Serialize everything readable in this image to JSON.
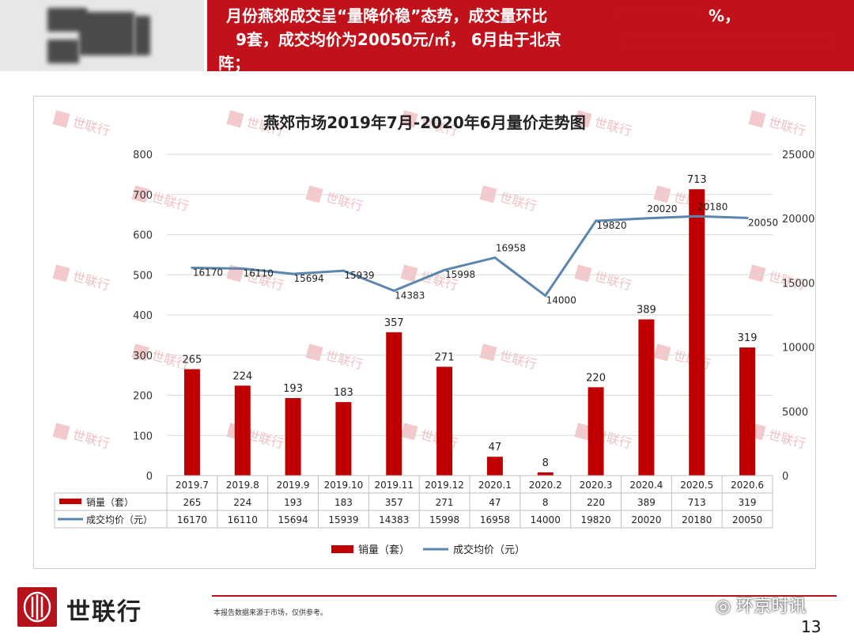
{
  "header": {
    "line1": "月份燕郊成交呈“量降价稳”态势，成交量环比",
    "line1_tail": "%，",
    "line2": "9套，成交均价为20050元/㎡， 6月由于北京",
    "line3": "阵；"
  },
  "chart_data": {
    "type": "bar+line",
    "title": "燕郊市场2019年7月-2020年6月量价走势图",
    "categories": [
      "2019.7",
      "2019.8",
      "2019.9",
      "2019.10",
      "2019.11",
      "2019.12",
      "2020.1",
      "2020.2",
      "2020.3",
      "2020.4",
      "2020.5",
      "2020.6"
    ],
    "series": [
      {
        "name": "销量（套）",
        "type": "bar",
        "axis": "left",
        "values": [
          265,
          224,
          193,
          183,
          357,
          271,
          47,
          8,
          220,
          389,
          713,
          319
        ],
        "color": "#c00000"
      },
      {
        "name": "成交均价（元）",
        "type": "line",
        "axis": "right",
        "values": [
          16170,
          16110,
          15694,
          15939,
          14383,
          15998,
          16958,
          14000,
          19820,
          20020,
          20180,
          20050
        ],
        "color": "#5b86ad"
      }
    ],
    "y_left": {
      "range": [
        0,
        800
      ],
      "ticks": [
        "0",
        "100",
        "200",
        "300",
        "400",
        "500",
        "600",
        "700",
        "800"
      ]
    },
    "y_right": {
      "range": [
        0,
        25000
      ],
      "ticks": [
        "0",
        "5000",
        "10000",
        "15000",
        "20000",
        "25000"
      ]
    },
    "grid": true,
    "legend_position": "bottom",
    "data_table": true,
    "watermark": "世联行"
  },
  "footer": {
    "logo_text": "世联行",
    "note": "本报告数据来源于市场，仅供参考。",
    "wechat": "环京时讯",
    "page_number": "13"
  }
}
